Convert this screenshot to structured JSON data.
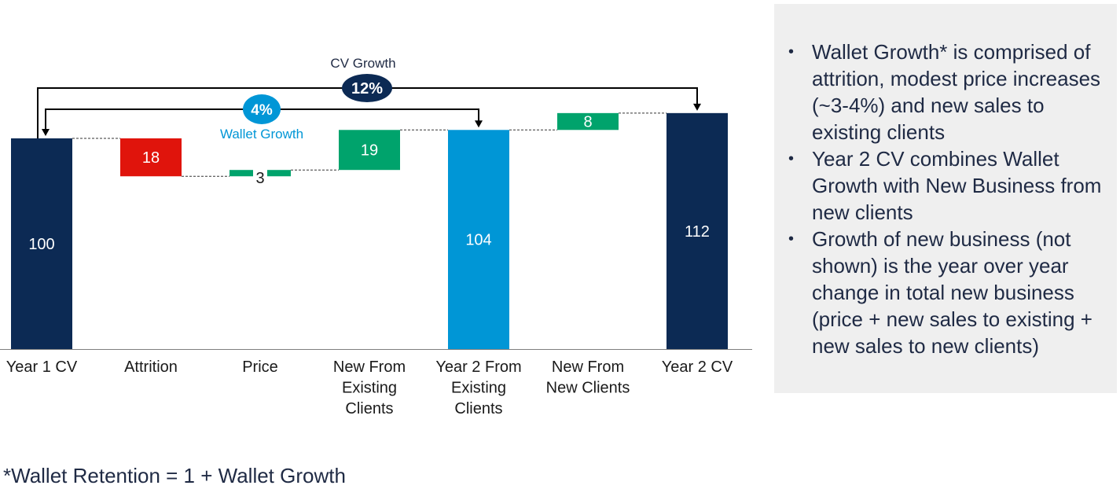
{
  "chart_data": {
    "type": "waterfall",
    "categories": [
      "Year 1 CV",
      "Attrition",
      "Price",
      "New From Existing Clients",
      "Year 2 From Existing Clients",
      "New From New Clients",
      "Year 2 CV"
    ],
    "category_lines": [
      [
        "Year 1 CV"
      ],
      [
        "Attrition"
      ],
      [
        "Price"
      ],
      [
        "New From",
        "Existing",
        "Clients"
      ],
      [
        "Year 2 From",
        "Existing",
        "Clients"
      ],
      [
        "New From",
        "New Clients"
      ],
      [
        "Year 2 CV"
      ]
    ],
    "values": [
      100,
      -18,
      3,
      19,
      104,
      8,
      112
    ],
    "value_labels": [
      "100",
      "18",
      "3",
      "19",
      "104",
      "8",
      "112"
    ],
    "kinds": [
      "total",
      "decrease",
      "increase",
      "increase",
      "total",
      "increase",
      "total"
    ],
    "colors": {
      "total_dark": "#0c2a54",
      "total_light": "#0096d6",
      "decrease": "#e0140c",
      "increase": "#00a36c",
      "bar_label_light": "#ffffff",
      "bar_label_dark": "#1a1a1a",
      "bracket": "#000000",
      "connector": "#333333",
      "axis": "#7f7f7f",
      "cv_pill": "#0c2a54",
      "wallet_pill": "#0096d6",
      "wallet_text": "#0096d6",
      "cv_text": "#1f2a44"
    },
    "annotations": {
      "cv_growth": {
        "label": "CV Growth",
        "value": "12%",
        "from": "Year 1 CV",
        "to": "Year 2 CV"
      },
      "wallet_growth": {
        "label": "Wallet Growth",
        "value": "4%",
        "from": "Year 1 CV",
        "to": "Year 2 From Existing Clients"
      }
    }
  },
  "side_panel": {
    "bullet_char": "•",
    "bullets": [
      "Wallet Growth* is comprised of attrition, modest price increases (~3-4%) and new sales to existing clients",
      "Year 2 CV combines Wallet Growth with New Business from new clients",
      "Growth of new business (not shown) is the year over year change in total new business (price + new sales to existing + new sales to new clients)"
    ]
  },
  "footnote": "*Wallet Retention = 1 + Wallet Growth"
}
